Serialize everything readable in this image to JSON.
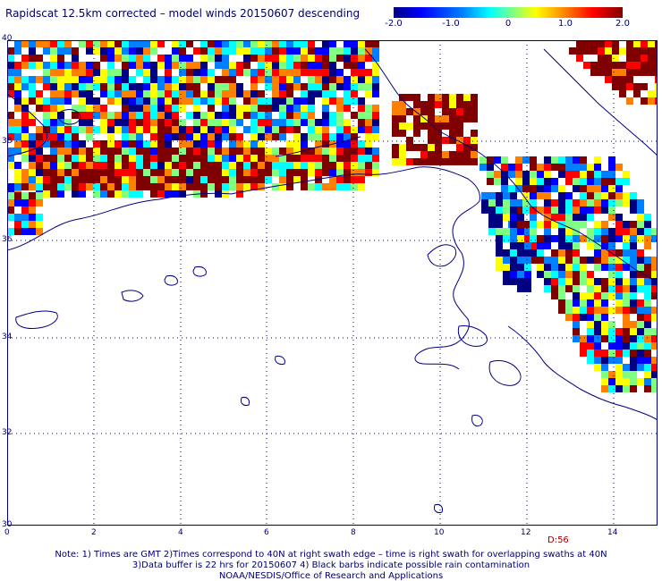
{
  "title": "Rapidscat 12.5km corrected – model winds 20150607 descending",
  "colorbar": {
    "ticks": [
      "-2.0",
      "-1.0",
      "0",
      "1.0",
      "2.0"
    ],
    "colors": [
      "#000080",
      "#0000ff",
      "#0080ff",
      "#00ffff",
      "#80ff80",
      "#ffff00",
      "#ff8000",
      "#ff0000",
      "#800000"
    ]
  },
  "map": {
    "lon_ticks": [
      "0",
      "2",
      "4",
      "6",
      "8",
      "10",
      "12",
      "14"
    ],
    "lat_ticks": [
      "40",
      "38",
      "36",
      "34",
      "32",
      "30"
    ],
    "coastline_color": "#000080",
    "grid_color": "#000066"
  },
  "tag": "D:56",
  "notes": [
    "Note: 1) Times are GMT 2)Times correspond to 40N at right swath edge – time is right swath for overlapping swaths at 40N",
    "3)Data buffer is 22 hrs for 20150607 4) Black barbs indicate possible rain contamination",
    "NOAA/NESDIS/Office of Research and Applications"
  ]
}
